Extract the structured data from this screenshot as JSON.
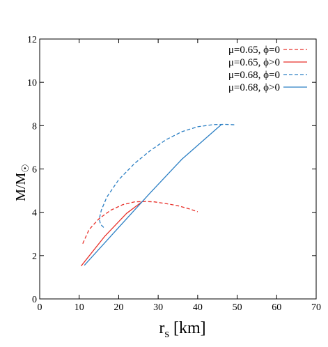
{
  "chart_data": {
    "type": "line",
    "xlabel": "r",
    "xlabel_sub": "s",
    "xlabel_unit": " [km]",
    "ylabel": "M/M",
    "ylabel_sub": "☉",
    "xlim": [
      0,
      70
    ],
    "ylim": [
      0,
      12
    ],
    "xticks": [
      0,
      10,
      20,
      30,
      40,
      50,
      60,
      70
    ],
    "yticks": [
      0,
      2,
      4,
      6,
      8,
      10,
      12
    ],
    "grid": false,
    "legend_position": "top-right",
    "series": [
      {
        "name": "μ=0.65, ϕ=0",
        "color": "#e8302a",
        "dash": true,
        "points": [
          [
            10.9,
            2.55
          ],
          [
            12.5,
            3.2
          ],
          [
            15,
            3.7
          ],
          [
            18,
            4.1
          ],
          [
            21,
            4.35
          ],
          [
            24,
            4.48
          ],
          [
            26.5,
            4.5
          ],
          [
            29,
            4.48
          ],
          [
            32,
            4.4
          ],
          [
            35,
            4.3
          ],
          [
            38,
            4.15
          ],
          [
            40,
            4.02
          ]
        ]
      },
      {
        "name": "μ=0.65, ϕ>0",
        "color": "#e8302a",
        "dash": false,
        "points": [
          [
            10.5,
            1.52
          ],
          [
            16.5,
            2.9
          ],
          [
            22,
            3.95
          ],
          [
            26,
            4.5
          ]
        ]
      },
      {
        "name": "μ=0.68, ϕ=0",
        "color": "#2b7fc4",
        "dash": true,
        "points": [
          [
            16.2,
            3.3
          ],
          [
            15.4,
            3.45
          ],
          [
            15.1,
            3.7
          ],
          [
            15.6,
            4.1
          ],
          [
            17,
            4.7
          ],
          [
            20,
            5.5
          ],
          [
            24,
            6.25
          ],
          [
            28,
            6.85
          ],
          [
            32,
            7.35
          ],
          [
            36,
            7.72
          ],
          [
            40,
            7.95
          ],
          [
            44,
            8.05
          ],
          [
            47,
            8.06
          ],
          [
            49.5,
            8.04
          ]
        ]
      },
      {
        "name": "μ=0.68, ϕ>0",
        "color": "#2b7fc4",
        "dash": false,
        "points": [
          [
            11.3,
            1.55
          ],
          [
            20,
            3.3
          ],
          [
            28,
            4.9
          ],
          [
            36,
            6.45
          ],
          [
            46,
            8.05
          ]
        ]
      }
    ]
  }
}
